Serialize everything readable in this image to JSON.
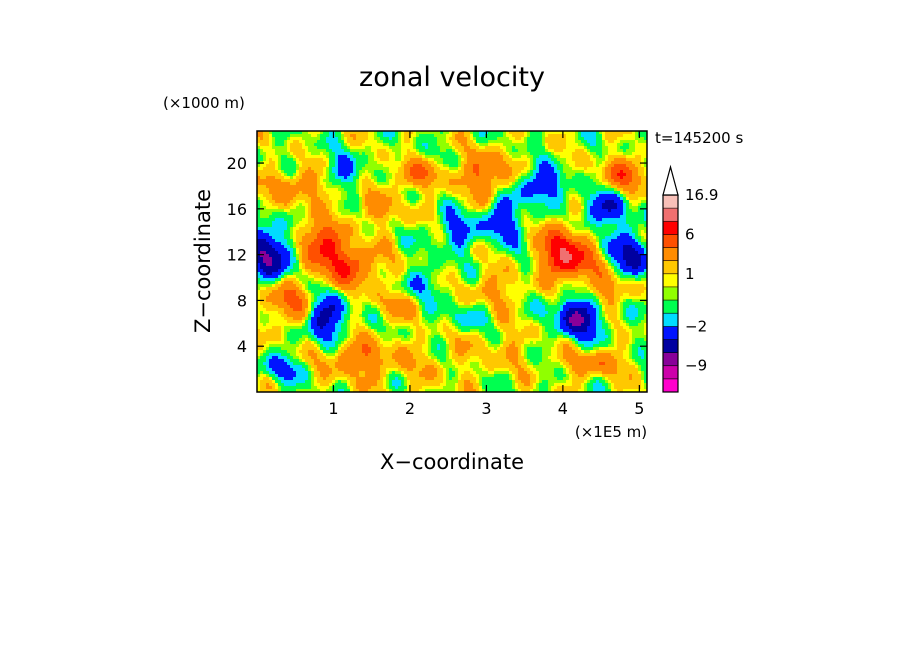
{
  "chart_data": {
    "type": "heatmap",
    "title": "zonal velocity",
    "time_label": "t=145200 s",
    "xlabel": "X−coordinate",
    "ylabel": "Z−coordinate",
    "x_unit": "(×1E5 m)",
    "y_unit": "(×1000 m)",
    "xlim": [
      0.0,
      5.1
    ],
    "ylim": [
      0.0,
      22.8
    ],
    "x_ticks": [
      1,
      2,
      3,
      4,
      5
    ],
    "y_ticks": [
      4,
      8,
      12,
      16,
      20
    ],
    "colorbar": {
      "levels": [
        {
          "min": -16.9,
          "max": -13,
          "color": "#ff00cc"
        },
        {
          "min": -13,
          "max": -9,
          "color": "#cc00aa"
        },
        {
          "min": -9,
          "max": -6,
          "color": "#880099"
        },
        {
          "min": -6,
          "max": -4,
          "color": "#0000a0"
        },
        {
          "min": -4,
          "max": -2,
          "color": "#0014ff"
        },
        {
          "min": -2,
          "max": -1,
          "color": "#00dcff"
        },
        {
          "min": -1,
          "max": 0,
          "color": "#00ff50"
        },
        {
          "min": 0,
          "max": 0.5,
          "color": "#90ff00"
        },
        {
          "min": 0.5,
          "max": 1,
          "color": "#ffff00"
        },
        {
          "min": 1,
          "max": 2,
          "color": "#ffc800"
        },
        {
          "min": 2,
          "max": 4,
          "color": "#ff8c00"
        },
        {
          "min": 4,
          "max": 6,
          "color": "#ff5000"
        },
        {
          "min": 6,
          "max": 9,
          "color": "#ff0000"
        },
        {
          "min": 9,
          "max": 13,
          "color": "#f07070"
        },
        {
          "min": 13,
          "max": 16.9,
          "color": "#f8c0b8"
        }
      ],
      "labels": [
        "16.9",
        "6",
        "1",
        "−2",
        "−9"
      ],
      "overflow_arrow_color": "#ffffff"
    },
    "features": [
      {
        "x": 0.2,
        "z": 12,
        "value": -6,
        "sx": 0.35,
        "sz": 2.2
      },
      {
        "x": 0.4,
        "z": 8,
        "value": 4,
        "sx": 0.3,
        "sz": 2.0
      },
      {
        "x": 0.6,
        "z": 18,
        "value": 3,
        "sx": 0.5,
        "sz": 1.5
      },
      {
        "x": 0.8,
        "z": 13,
        "value": 6,
        "sx": 0.3,
        "sz": 1.8
      },
      {
        "x": 0.9,
        "z": 6.5,
        "value": -5,
        "sx": 0.25,
        "sz": 2.0
      },
      {
        "x": 1.2,
        "z": 11,
        "value": 5,
        "sx": 0.4,
        "sz": 1.8
      },
      {
        "x": 1.3,
        "z": 3,
        "value": 3,
        "sx": 0.4,
        "sz": 1.5
      },
      {
        "x": 1.1,
        "z": 19,
        "value": -3,
        "sx": 0.3,
        "sz": 1.5
      },
      {
        "x": 1.6,
        "z": 16,
        "value": 2,
        "sx": 0.4,
        "sz": 1.5
      },
      {
        "x": 2.0,
        "z": 2.5,
        "value": 1,
        "sx": 1.0,
        "sz": 2.5
      },
      {
        "x": 2.2,
        "z": 9.5,
        "value": -1.5,
        "sx": 0.35,
        "sz": 1.5
      },
      {
        "x": 2.6,
        "z": 14,
        "value": -3,
        "sx": 0.25,
        "sz": 1.5
      },
      {
        "x": 2.1,
        "z": 19,
        "value": 3,
        "sx": 0.4,
        "sz": 1.2
      },
      {
        "x": 3.0,
        "z": 19,
        "value": 4,
        "sx": 0.3,
        "sz": 2.0
      },
      {
        "x": 3.2,
        "z": 15,
        "value": -4,
        "sx": 0.25,
        "sz": 1.8
      },
      {
        "x": 3.1,
        "z": 9,
        "value": 2,
        "sx": 0.4,
        "sz": 1.5
      },
      {
        "x": 3.3,
        "z": 4,
        "value": 1,
        "sx": 0.5,
        "sz": 2.0
      },
      {
        "x": 3.7,
        "z": 18,
        "value": -4,
        "sx": 0.3,
        "sz": 1.5
      },
      {
        "x": 4.1,
        "z": 11.5,
        "value": 7,
        "sx": 0.3,
        "sz": 1.6
      },
      {
        "x": 4.2,
        "z": 6.5,
        "value": -6,
        "sx": 0.3,
        "sz": 1.8
      },
      {
        "x": 3.95,
        "z": 13,
        "value": 5,
        "sx": 0.2,
        "sz": 2.0
      },
      {
        "x": 4.55,
        "z": 16,
        "value": -4,
        "sx": 0.3,
        "sz": 1.5
      },
      {
        "x": 4.9,
        "z": 12,
        "value": -5,
        "sx": 0.25,
        "sz": 2.0
      },
      {
        "x": 4.6,
        "z": 9,
        "value": 3,
        "sx": 0.3,
        "sz": 1.5
      },
      {
        "x": 4.8,
        "z": 19,
        "value": 4,
        "sx": 0.3,
        "sz": 1.5
      },
      {
        "x": 4.4,
        "z": 2.5,
        "value": 3,
        "sx": 0.4,
        "sz": 1.2
      },
      {
        "x": 0.3,
        "z": 2,
        "value": -2.5,
        "sx": 0.3,
        "sz": 1.2
      },
      {
        "x": 2.7,
        "z": 6.5,
        "value": -1.5,
        "sx": 0.3,
        "sz": 1.2
      },
      {
        "x": 1.8,
        "z": 7.5,
        "value": 2,
        "sx": 0.3,
        "sz": 1.2
      }
    ]
  }
}
